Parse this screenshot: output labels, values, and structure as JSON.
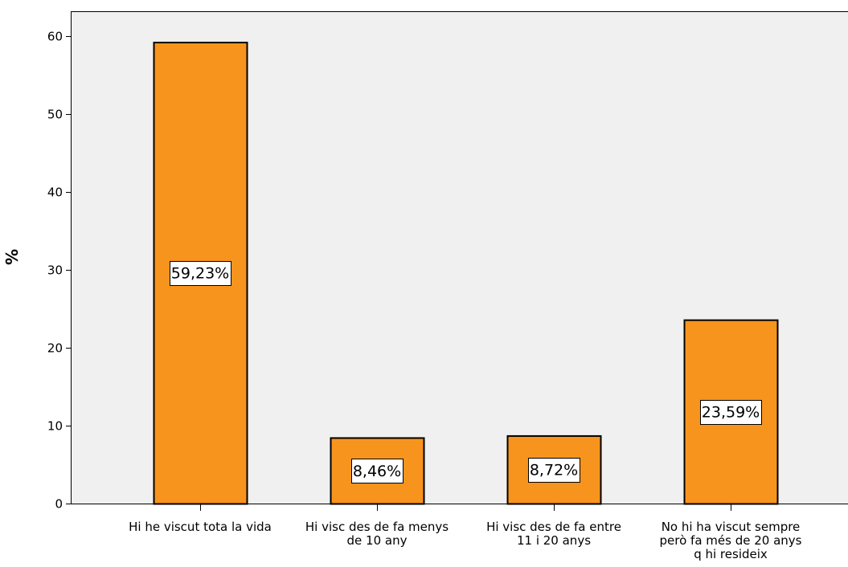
{
  "chart_data": {
    "type": "bar",
    "categories": [
      [
        "Hi he viscut tota la vida"
      ],
      [
        "Hi visc des de fa menys",
        "de 10 any"
      ],
      [
        "Hi visc des de fa entre",
        "11 i 20 anys"
      ],
      [
        "No hi ha viscut sempre",
        "però fa més de 20 anys",
        "q hi resideix"
      ]
    ],
    "values": [
      59.23,
      8.46,
      8.72,
      23.59
    ],
    "data_labels": [
      "59,23%",
      "8,46%",
      "8,72%",
      "23,59%"
    ],
    "title": "",
    "xlabel": "",
    "ylabel": "%",
    "ylim": [
      0,
      65
    ],
    "yticks": [
      0,
      10,
      20,
      30,
      40,
      50,
      60
    ],
    "grid": false,
    "legend": "none",
    "colors": {
      "bar_fill": "#f7941d",
      "bar_stroke": "#000000",
      "plot_background": "#f0f0f0",
      "axis": "#000000",
      "label_box_fill": "#ffffff"
    }
  }
}
